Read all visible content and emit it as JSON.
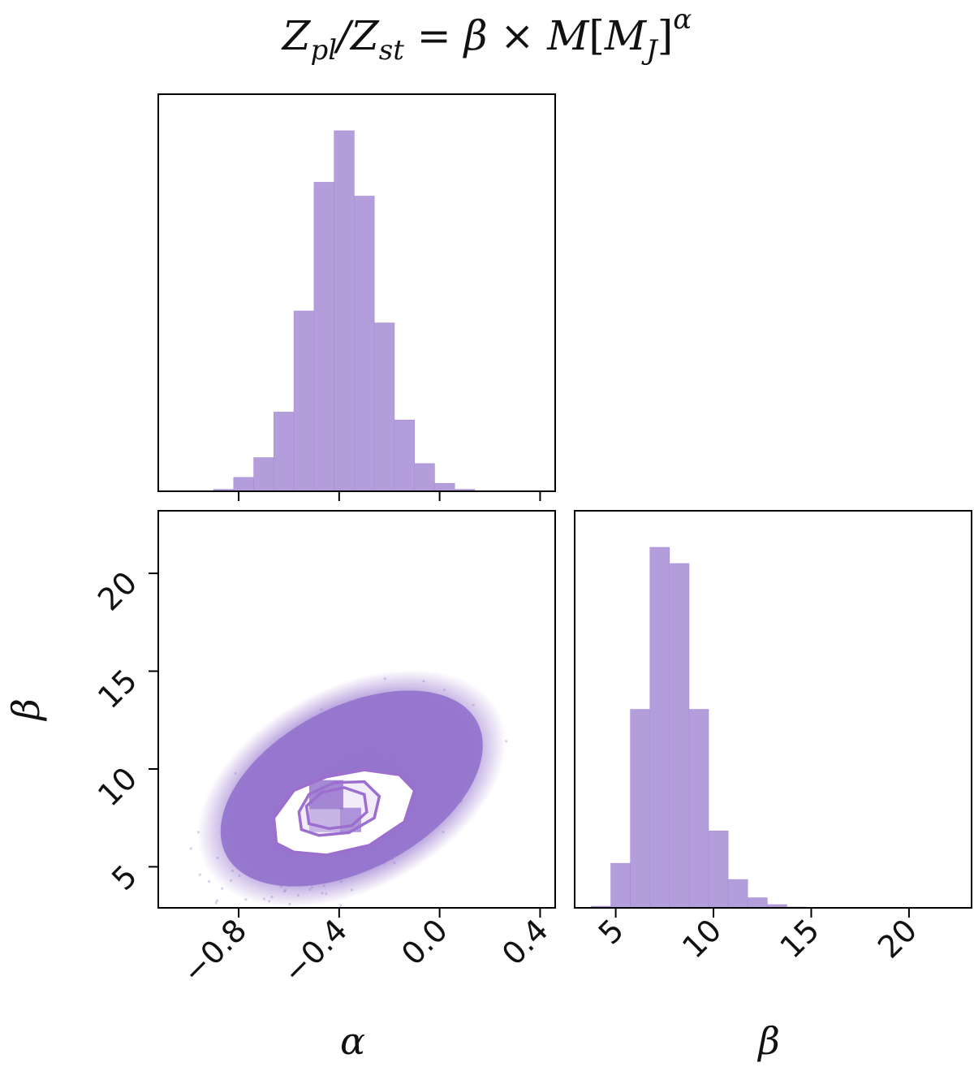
{
  "title": {
    "z1": "Z",
    "z1_sub": "pl",
    "slash": "/",
    "z2": "Z",
    "z2_sub": "st",
    "equals": " = ",
    "beta": "β",
    "times": " × ",
    "m": "M",
    "bracket_open": "[",
    "mj": "M",
    "mj_sub": "J",
    "bracket_close": "]",
    "alpha_sup": "α"
  },
  "colors": {
    "hist_fill": "#b39ddb",
    "scatter": "#9575cd",
    "contour": "#9c6fcf",
    "axes": "#000000"
  },
  "chart_data": [
    {
      "type": "histogram",
      "panel": "alpha-marginal",
      "bin_edges": [
        -0.98,
        -0.9,
        -0.82,
        -0.74,
        -0.66,
        -0.58,
        -0.5,
        -0.42,
        -0.34,
        -0.26,
        -0.18,
        -0.1,
        -0.02,
        0.06,
        0.14,
        0.22,
        0.3
      ],
      "counts": [
        0.2,
        1.0,
        7.0,
        17.0,
        40.0,
        91.0,
        156.0,
        182.0,
        149.0,
        85.0,
        36.0,
        14.0,
        4.0,
        1.0,
        0.3,
        0.1
      ],
      "xlim": [
        -1.12,
        0.46
      ],
      "xticks": [
        -0.8,
        -0.4,
        0.0,
        0.4
      ]
    },
    {
      "type": "scatter",
      "panel": "alpha-beta-joint",
      "xlabel": "α",
      "ylabel": "β",
      "xlim": [
        -1.12,
        0.46
      ],
      "ylim": [
        2.9,
        23.2
      ],
      "xticks": [
        -0.8,
        -0.4,
        0.0,
        0.4
      ],
      "xtick_labels": [
        "−0.8",
        "−0.4",
        "0.0",
        "0.4"
      ],
      "yticks": [
        5,
        10,
        15,
        20
      ],
      "ytick_labels": [
        "5",
        "10",
        "15",
        "20"
      ],
      "center": {
        "alpha": -0.39,
        "beta": 8.1
      },
      "contours": [
        {
          "level": "outer",
          "points": [
            [
              -0.65,
              6.2
            ],
            [
              -0.58,
              5.75
            ],
            [
              -0.45,
              5.6
            ],
            [
              -0.28,
              6.1
            ],
            [
              -0.14,
              7.3
            ],
            [
              -0.1,
              8.9
            ],
            [
              -0.16,
              9.7
            ],
            [
              -0.3,
              9.95
            ],
            [
              -0.45,
              9.6
            ],
            [
              -0.58,
              8.9
            ],
            [
              -0.66,
              7.5
            ]
          ]
        },
        {
          "level": "middle",
          "points": [
            [
              -0.55,
              6.9
            ],
            [
              -0.48,
              6.6
            ],
            [
              -0.36,
              6.75
            ],
            [
              -0.26,
              7.5
            ],
            [
              -0.24,
              8.6
            ],
            [
              -0.3,
              9.35
            ],
            [
              -0.42,
              9.3
            ],
            [
              -0.52,
              8.7
            ],
            [
              -0.56,
              7.8
            ]
          ]
        },
        {
          "level": "inner",
          "points": [
            [
              -0.52,
              7.2
            ],
            [
              -0.44,
              6.95
            ],
            [
              -0.35,
              7.1
            ],
            [
              -0.29,
              7.8
            ],
            [
              -0.3,
              8.7
            ],
            [
              -0.38,
              9.05
            ],
            [
              -0.47,
              8.8
            ],
            [
              -0.53,
              8.1
            ]
          ]
        }
      ]
    },
    {
      "type": "histogram",
      "panel": "beta-marginal",
      "xlabel": "β",
      "bin_edges": [
        3.75,
        4.75,
        5.75,
        6.75,
        7.75,
        8.75,
        9.75,
        10.75,
        11.75,
        12.75,
        13.75,
        14.75,
        15.75,
        16.75,
        17.75,
        18.75,
        19.75,
        20.75,
        21.75
      ],
      "counts": [
        0.4,
        11.0,
        49.0,
        89.0,
        85.0,
        49.0,
        19.0,
        7.0,
        2.5,
        0.8,
        0.2,
        0.05,
        0.02,
        0.01,
        0.0,
        0.0,
        0.0,
        0.0
      ],
      "xlim": [
        2.9,
        23.2
      ],
      "xticks": [
        5,
        10,
        15,
        20
      ],
      "xtick_labels": [
        "5",
        "10",
        "15",
        "20"
      ]
    }
  ]
}
